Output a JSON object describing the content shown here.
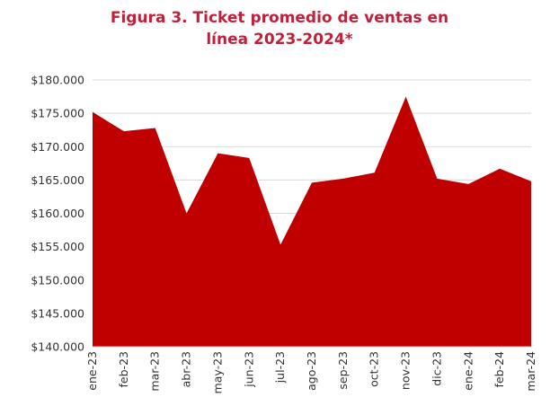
{
  "chart_data": {
    "type": "area",
    "title_line1": "Figura 3. Ticket promedio de ventas en",
    "title_line2": "línea 2023-2024*",
    "categories": [
      "ene-23",
      "feb-23",
      "mar-23",
      "abr-23",
      "may-23",
      "jun-23",
      "jul-23",
      "ago-23",
      "sep-23",
      "oct-23",
      "nov-23",
      "dic-23",
      "ene-24",
      "feb-24",
      "mar-24"
    ],
    "series": [
      {
        "values": [
          175200,
          172300,
          172800,
          160000,
          169000,
          168300,
          155300,
          164600,
          165200,
          166100,
          177500,
          165200,
          164400,
          166700,
          164800
        ]
      }
    ],
    "ylim": [
      140000,
      180000
    ],
    "yticks": [
      140000,
      145000,
      150000,
      155000,
      160000,
      165000,
      170000,
      175000,
      180000
    ],
    "ytick_labels": [
      "$140.000",
      "$145.000",
      "$150.000",
      "$155.000",
      "$160.000",
      "$165.000",
      "$170.000",
      "$175.000",
      "$180.000"
    ],
    "grid": true,
    "fill_color": "#c00000"
  }
}
